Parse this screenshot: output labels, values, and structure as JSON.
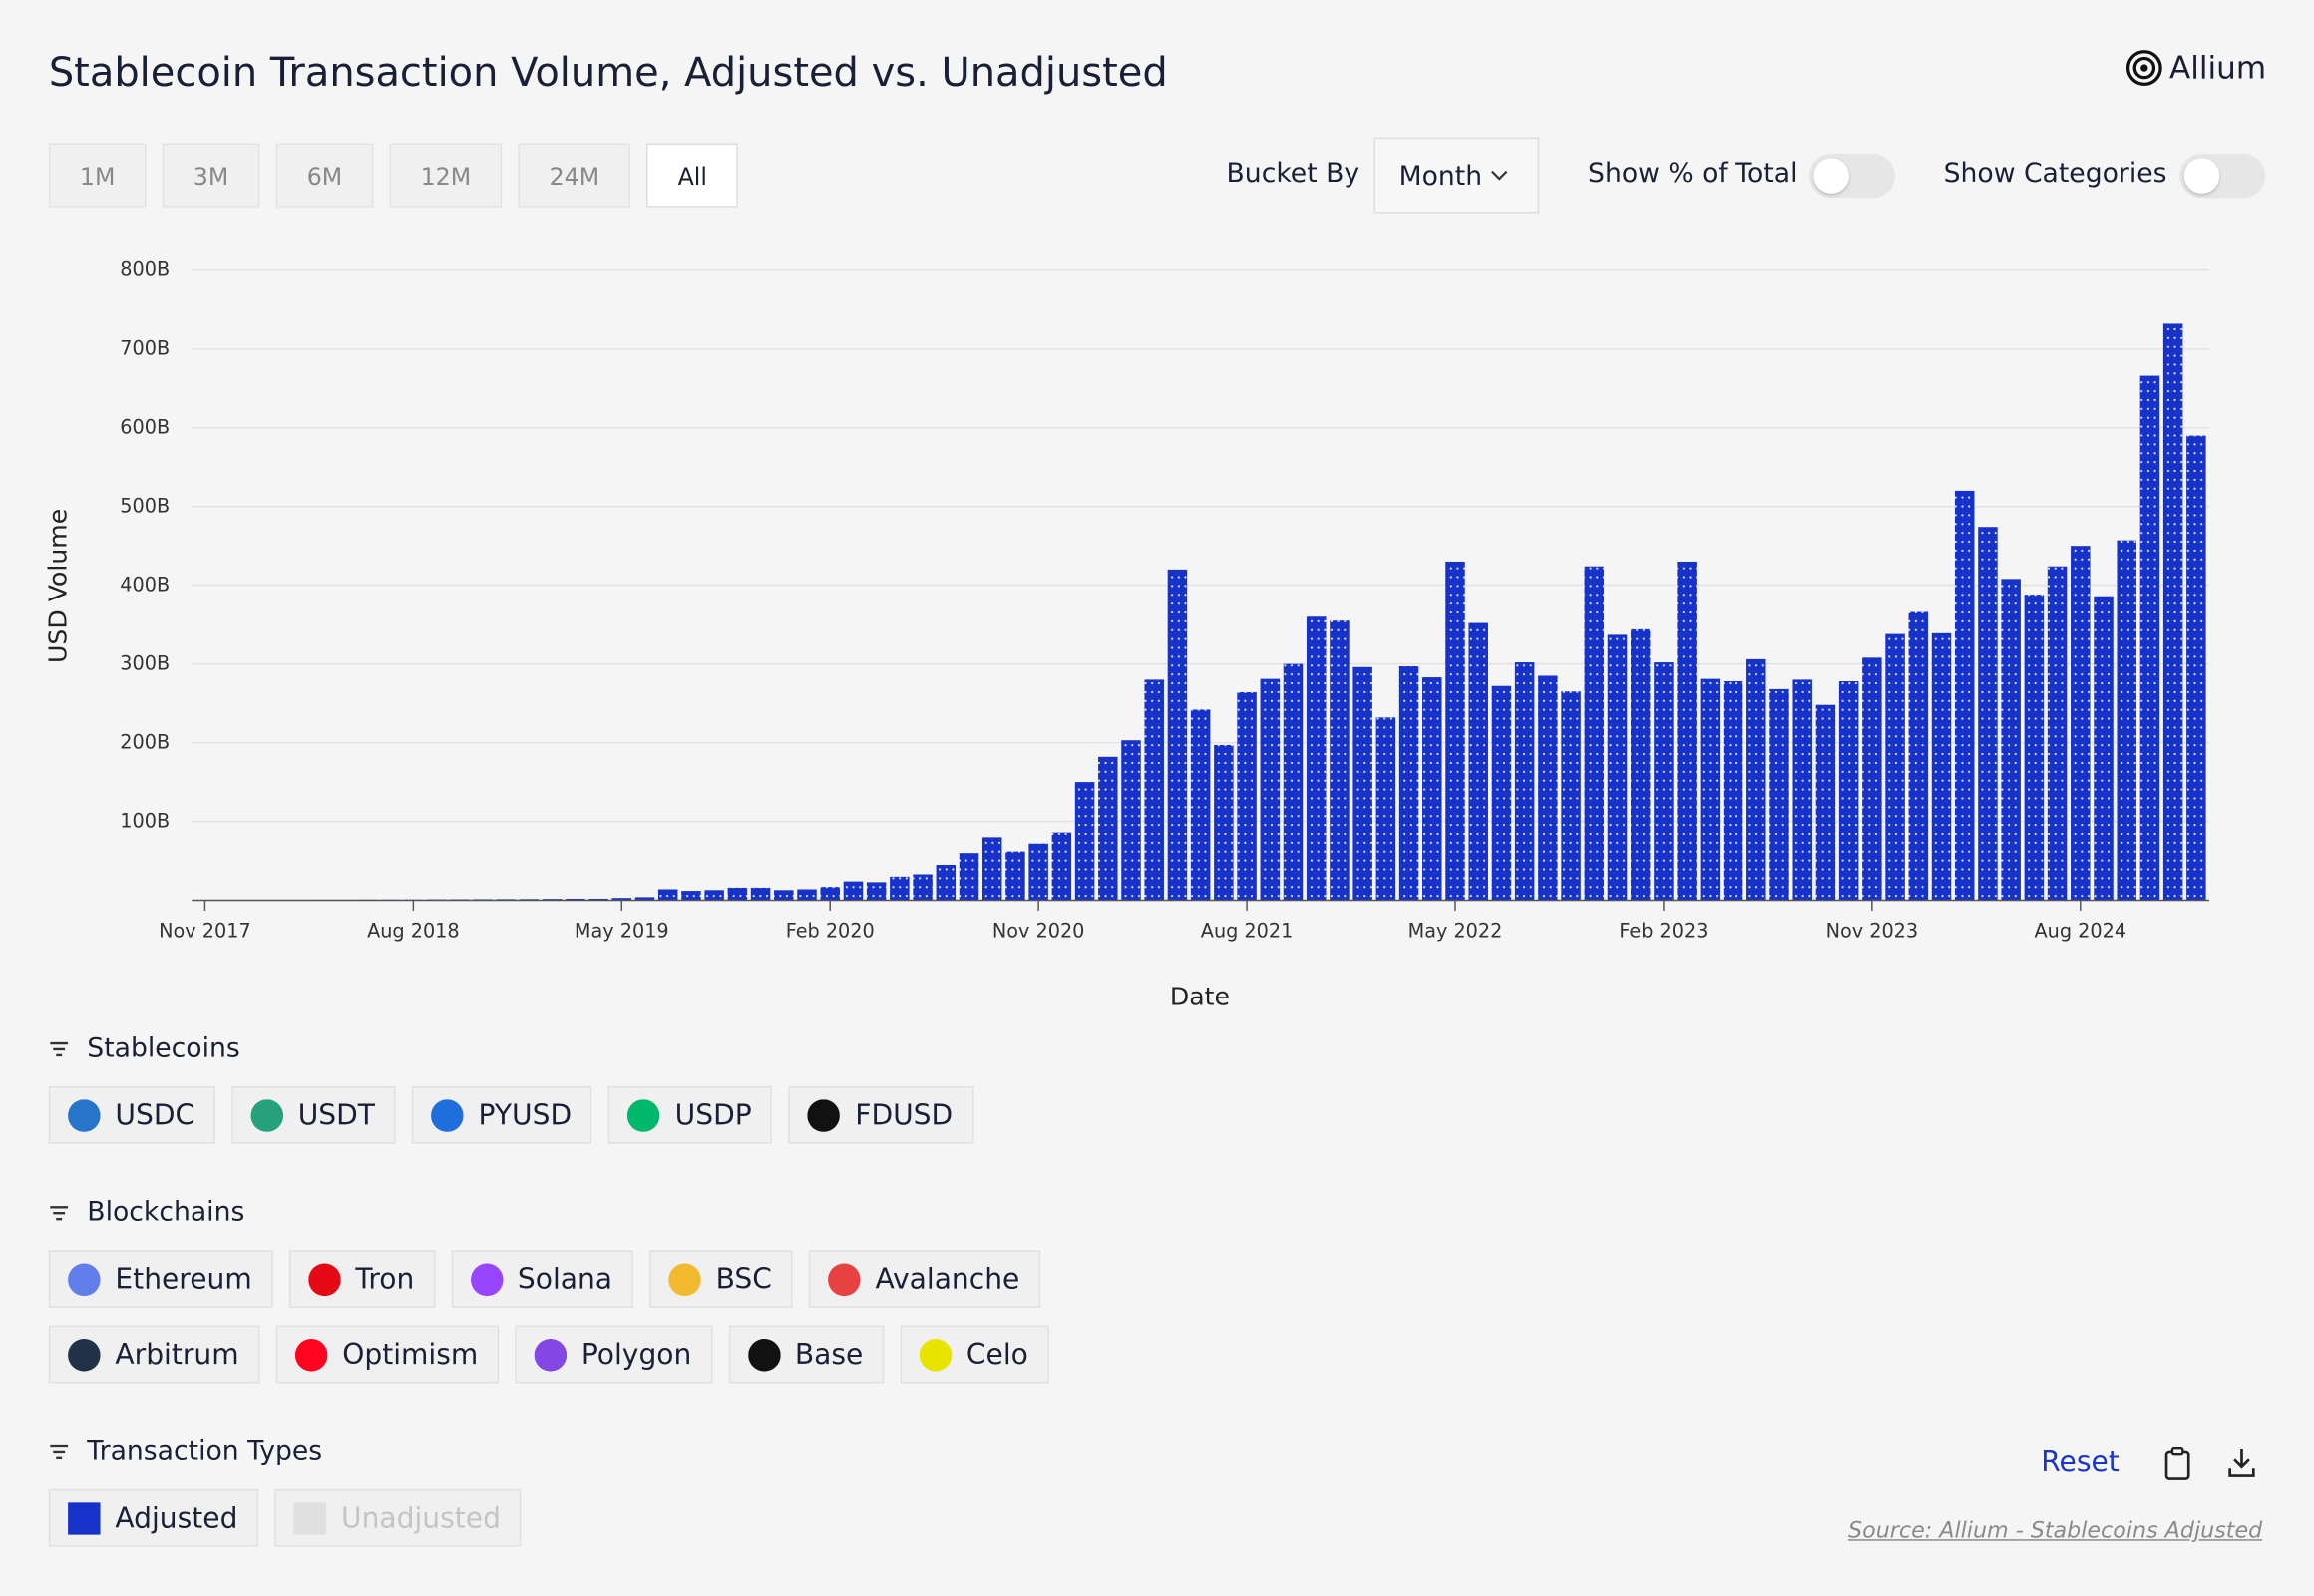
{
  "header": {
    "title": "Stablecoin Transaction Volume, Adjusted vs. Unadjusted",
    "logo": "Allium"
  },
  "controls": {
    "ranges": [
      "1M",
      "3M",
      "6M",
      "12M",
      "24M",
      "All"
    ],
    "bucket_label": "Bucket By",
    "bucket_value": "Month",
    "toggles": [
      "Show % of Total",
      "Show Categories"
    ]
  },
  "chart_data": {
    "type": "bar",
    "x_label": "Date",
    "y_label": "USD Volume",
    "color": "#1732c8",
    "categories": [
      "Nov 2017",
      null,
      null,
      null,
      null,
      null,
      null,
      null,
      null,
      "Aug 2018",
      null,
      null,
      null,
      null,
      null,
      null,
      null,
      null,
      "May 2019",
      null,
      null,
      null,
      null,
      null,
      null,
      null,
      null,
      "Feb 2020",
      null,
      null,
      null,
      null,
      null,
      null,
      null,
      null,
      "Nov 2020",
      null,
      null,
      null,
      null,
      null,
      null,
      null,
      null,
      "Aug 2021",
      null,
      null,
      null,
      null,
      null,
      null,
      null,
      null,
      "May 2022",
      null,
      null,
      null,
      null,
      null,
      null,
      null,
      null,
      "Feb 2023",
      null,
      null,
      null,
      null,
      null,
      null,
      null,
      null,
      "Nov 2023",
      null,
      null,
      null,
      null,
      null,
      null,
      null,
      null,
      "Aug 2024",
      null,
      null,
      null,
      null,
      null
    ],
    "values": [
      0.5,
      0.5,
      0.6,
      0.6,
      0.7,
      0.8,
      0.8,
      0.9,
      1,
      1,
      1.2,
      1.3,
      1.4,
      1.5,
      1.6,
      1.8,
      2,
      2,
      3,
      4,
      14,
      12,
      13,
      16,
      16,
      13,
      14,
      17,
      24,
      23,
      30,
      33,
      45,
      60,
      80,
      62,
      72,
      86,
      150,
      182,
      203,
      280,
      420,
      242,
      197,
      264,
      281,
      300,
      360,
      355,
      296,
      232,
      297,
      283,
      430,
      352,
      272,
      302,
      285,
      265,
      424,
      337,
      344,
      302,
      430,
      281,
      278,
      306,
      268,
      280,
      248,
      278,
      308,
      338,
      366,
      339,
      520,
      474,
      408,
      388,
      424,
      450,
      386,
      457,
      666,
      732,
      590
    ],
    "ylim": [
      0,
      800
    ],
    "yticks": [
      {
        "value": 100,
        "label": "100B"
      },
      {
        "value": 200,
        "label": "200B"
      },
      {
        "value": 300,
        "label": "300B"
      },
      {
        "value": 400,
        "label": "400B"
      },
      {
        "value": 500,
        "label": "500B"
      },
      {
        "value": 600,
        "label": "600B"
      },
      {
        "value": 700,
        "label": "700B"
      },
      {
        "value": 800,
        "label": "800B"
      }
    ],
    "grid": true
  },
  "filters": [
    {
      "title": "Stablecoins",
      "rows": [
        [
          "USDC",
          "USDT",
          "PYUSD",
          "USDP",
          "FDUSD"
        ]
      ]
    },
    {
      "title": "Blockchains",
      "rows": [
        [
          "Ethereum",
          "Tron",
          "Solana",
          "BSC",
          "Avalanche"
        ],
        [
          "Arbitrum",
          "Optimism",
          "Polygon",
          "Base",
          "Celo"
        ]
      ]
    },
    {
      "title": "Transaction Types",
      "rows": [
        [
          "Adjusted",
          "Unadjusted"
        ]
      ]
    }
  ],
  "footer": {
    "reset": "Reset",
    "source": "Source: Allium - Stablecoins Adjusted"
  }
}
